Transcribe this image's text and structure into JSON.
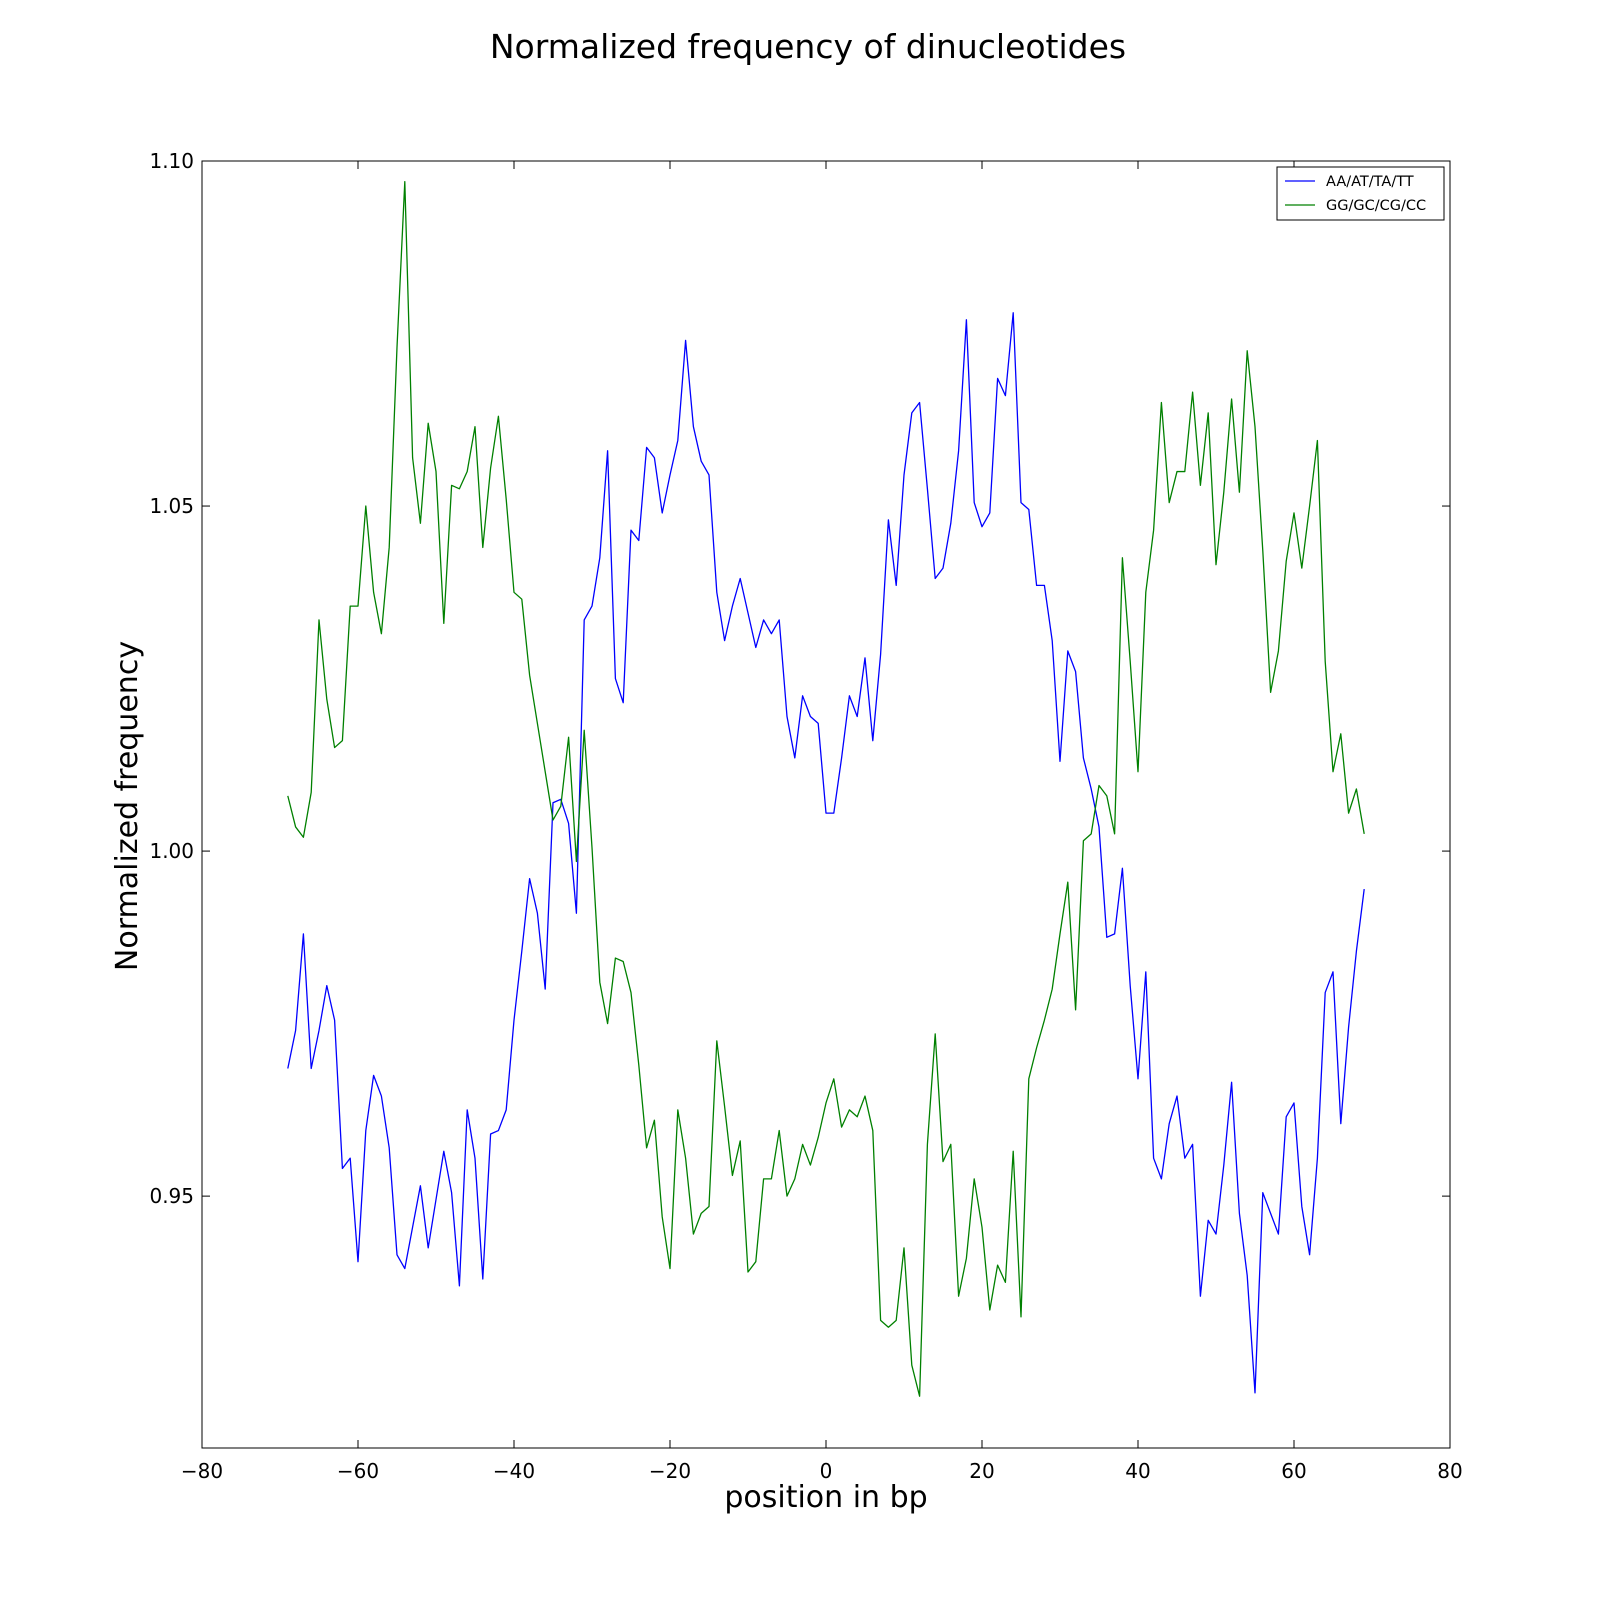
{
  "chart_data": {
    "type": "line",
    "title": "Normalized frequency of dinucleotides",
    "xlabel": "position in bp",
    "ylabel": "Normalized frequency",
    "xlim": [
      -80,
      80
    ],
    "ylim": [
      0.9135,
      1.1
    ],
    "x_ticks": [
      -80,
      -60,
      -40,
      -20,
      0,
      20,
      40,
      60,
      80
    ],
    "x_tick_labels": [
      "−80",
      "−60",
      "−40",
      "−20",
      "0",
      "20",
      "40",
      "60",
      "80"
    ],
    "y_ticks": [
      0.95,
      1.0,
      1.05,
      1.1
    ],
    "y_tick_labels": [
      "0.95",
      "1.00",
      "1.05",
      "1.10"
    ],
    "grid": false,
    "legend_position": "top-right",
    "x": [
      -69,
      -68,
      -67,
      -66,
      -65,
      -64,
      -63,
      -62,
      -61,
      -60,
      -59,
      -58,
      -57,
      -56,
      -55,
      -54,
      -53,
      -52,
      -51,
      -50,
      -49,
      -48,
      -47,
      -46,
      -45,
      -44,
      -43,
      -42,
      -41,
      -40,
      -39,
      -38,
      -37,
      -36,
      -35,
      -34,
      -33,
      -32,
      -31,
      -30,
      -29,
      -28,
      -27,
      -26,
      -25,
      -24,
      -23,
      -22,
      -21,
      -20,
      -19,
      -18,
      -17,
      -16,
      -15,
      -14,
      -13,
      -12,
      -11,
      -10,
      -9,
      -8,
      -7,
      -6,
      -5,
      -4,
      -3,
      -2,
      -1,
      0,
      1,
      2,
      3,
      4,
      5,
      6,
      7,
      8,
      9,
      10,
      11,
      12,
      13,
      14,
      15,
      16,
      17,
      18,
      19,
      20,
      21,
      22,
      23,
      24,
      25,
      26,
      27,
      28,
      29,
      30,
      31,
      32,
      33,
      34,
      35,
      36,
      37,
      38,
      39,
      40,
      41,
      42,
      43,
      44,
      45,
      46,
      47,
      48,
      49,
      50,
      51,
      52,
      53,
      54,
      55,
      56,
      57,
      58,
      59,
      60,
      61,
      62,
      63,
      64,
      65,
      66,
      67,
      68,
      69
    ],
    "series": [
      {
        "name": "AA/AT/TA/TT",
        "color": "#0000ff",
        "values": [
          0.9685,
          0.974,
          0.988,
          0.9685,
          0.974,
          0.9805,
          0.9755,
          0.954,
          0.9555,
          0.9405,
          0.9595,
          0.9675,
          0.9645,
          0.957,
          0.9415,
          0.9395,
          0.9455,
          0.9515,
          0.9425,
          0.9495,
          0.9565,
          0.9505,
          0.937,
          0.9625,
          0.9555,
          0.938,
          0.959,
          0.9595,
          0.9625,
          0.9755,
          0.9855,
          0.996,
          0.991,
          0.98,
          1.007,
          1.0075,
          1.004,
          0.991,
          1.0335,
          1.0355,
          1.0425,
          1.058,
          1.025,
          1.0215,
          1.0465,
          1.045,
          1.0585,
          1.057,
          1.049,
          1.0545,
          1.0595,
          1.074,
          1.0615,
          1.0565,
          1.0545,
          1.0375,
          1.0305,
          1.0355,
          1.0395,
          1.0345,
          1.0295,
          1.0335,
          1.0315,
          1.0335,
          1.0195,
          1.0135,
          1.0225,
          1.0195,
          1.0185,
          1.0055,
          1.0055,
          1.0135,
          1.0225,
          1.0195,
          1.028,
          1.016,
          1.0285,
          1.048,
          1.0385,
          1.0545,
          1.0635,
          1.065,
          1.0525,
          1.0395,
          1.041,
          1.0475,
          1.058,
          1.077,
          1.0505,
          1.047,
          1.049,
          1.0685,
          1.066,
          1.078,
          1.0505,
          1.0495,
          1.0385,
          1.0385,
          1.0305,
          1.013,
          1.029,
          1.026,
          1.0135,
          1.009,
          1.0035,
          0.9875,
          0.988,
          0.9975,
          0.9805,
          0.967,
          0.9825,
          0.9555,
          0.9525,
          0.9605,
          0.9645,
          0.9555,
          0.9575,
          0.9355,
          0.9465,
          0.9445,
          0.9545,
          0.9665,
          0.9475,
          0.9385,
          0.9215,
          0.9505,
          0.9475,
          0.9445,
          0.9615,
          0.9635,
          0.9485,
          0.9415,
          0.9555,
          0.9795,
          0.9825,
          0.9605,
          0.9745,
          0.9855,
          0.9945
        ]
      },
      {
        "name": "GG/GC/CG/CC",
        "color": "#008000",
        "values": [
          1.008,
          1.0035,
          1.002,
          1.0085,
          1.0335,
          1.022,
          1.015,
          1.016,
          1.0355,
          1.0355,
          1.05,
          1.0375,
          1.0315,
          1.044,
          1.073,
          1.097,
          1.057,
          1.0475,
          1.062,
          1.055,
          1.033,
          1.053,
          1.0525,
          1.055,
          1.0615,
          1.044,
          1.0555,
          1.063,
          1.051,
          1.0375,
          1.0365,
          1.0255,
          1.0185,
          1.0115,
          1.0045,
          1.0065,
          1.0165,
          0.9985,
          1.0175,
          1.0005,
          0.981,
          0.975,
          0.9845,
          0.984,
          0.9795,
          0.969,
          0.957,
          0.961,
          0.947,
          0.9395,
          0.9625,
          0.9555,
          0.9445,
          0.9475,
          0.9485,
          0.9725,
          0.963,
          0.953,
          0.958,
          0.939,
          0.9405,
          0.9525,
          0.9525,
          0.9595,
          0.95,
          0.9525,
          0.9575,
          0.9545,
          0.9585,
          0.9635,
          0.967,
          0.96,
          0.9625,
          0.9615,
          0.9645,
          0.9595,
          0.932,
          0.931,
          0.932,
          0.9425,
          0.9255,
          0.921,
          0.9575,
          0.9735,
          0.955,
          0.9575,
          0.9355,
          0.941,
          0.9525,
          0.9455,
          0.9335,
          0.94,
          0.9375,
          0.9565,
          0.9325,
          0.967,
          0.9715,
          0.9755,
          0.98,
          0.988,
          0.9955,
          0.977,
          1.0015,
          1.0025,
          1.0095,
          1.008,
          1.0025,
          1.0425,
          1.0275,
          1.0115,
          1.0375,
          1.0465,
          1.065,
          1.0505,
          1.055,
          1.055,
          1.0665,
          1.053,
          1.0635,
          1.0415,
          1.052,
          1.0655,
          1.052,
          1.0725,
          1.0615,
          1.0435,
          1.023,
          1.029,
          1.042,
          1.049,
          1.041,
          1.05,
          1.0595,
          1.0275,
          1.0115,
          1.017,
          1.0055,
          1.009,
          1.0025
        ]
      }
    ],
    "legend": [
      "AA/AT/TA/TT",
      "GG/GC/CG/CC"
    ]
  }
}
